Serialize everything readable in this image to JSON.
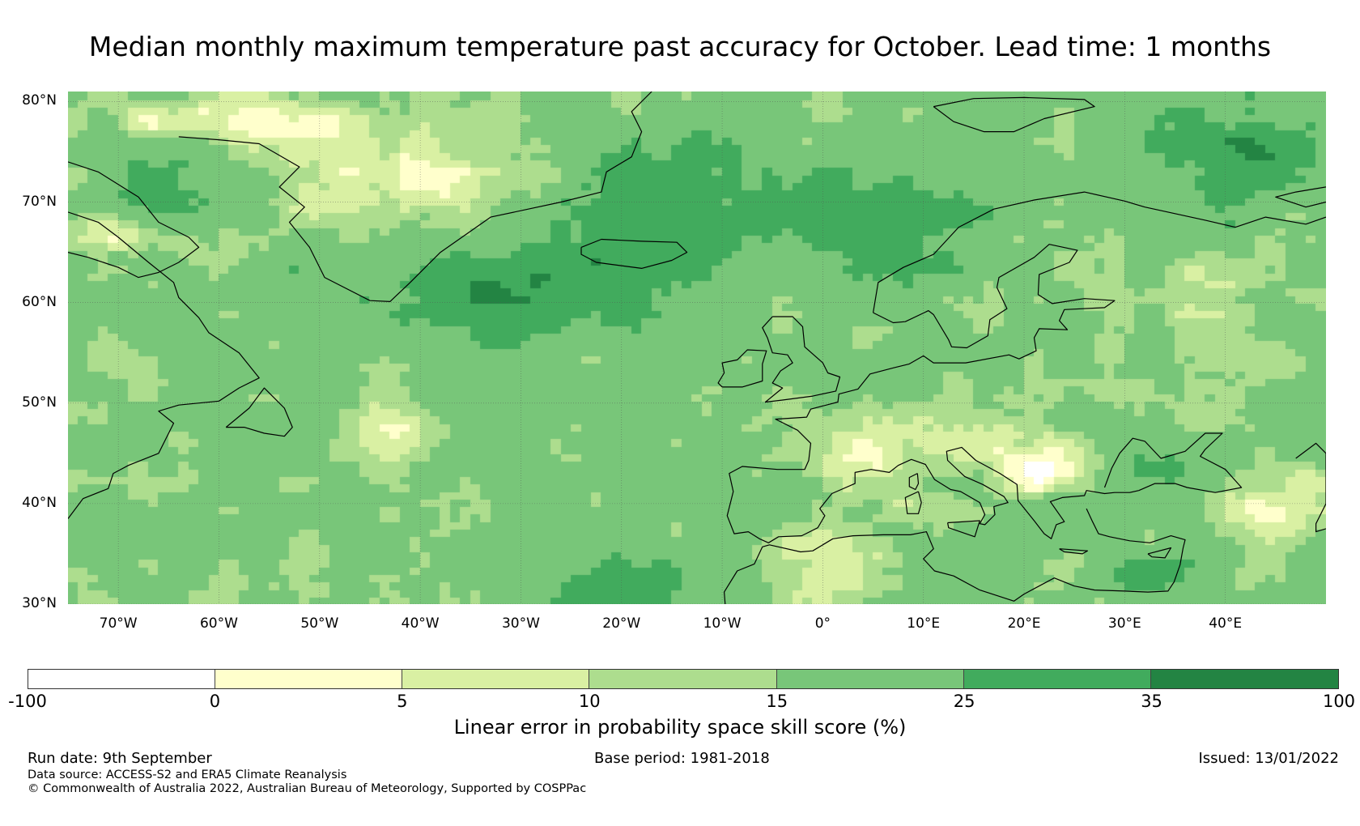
{
  "title": "Median monthly maximum temperature past accuracy for October. Lead time: 1 months",
  "map": {
    "lat_labels": [
      "80°N",
      "70°N",
      "60°N",
      "50°N",
      "40°N",
      "30°N"
    ],
    "lat_values": [
      80,
      70,
      60,
      50,
      40,
      30
    ],
    "lon_labels": [
      "70°W",
      "60°W",
      "50°W",
      "40°W",
      "30°W",
      "20°W",
      "10°W",
      "0°",
      "10°E",
      "20°E",
      "30°E",
      "40°E"
    ],
    "lon_values": [
      -70,
      -60,
      -50,
      -40,
      -30,
      -20,
      -10,
      0,
      10,
      20,
      30,
      40
    ],
    "lon_range": [
      -75,
      50
    ],
    "lat_range": [
      30,
      81
    ],
    "grid": true
  },
  "colorbar": {
    "bounds": [
      "-100",
      "0",
      "5",
      "10",
      "15",
      "25",
      "35",
      "100"
    ],
    "colors": [
      "#ffffff",
      "#ffffcc",
      "#d9f0a3",
      "#addd8e",
      "#78c679",
      "#41ab5d",
      "#238443"
    ],
    "label": "Linear error in probability space skill score (%)"
  },
  "footer": {
    "run_date": "Run date: 9th September",
    "base_period": "Base period: 1981-2018",
    "issued": "Issued: 13/01/2022",
    "data_source": "Data source: ACCESS-S2 and ERA5 Climate Reanalysis",
    "copyright": "© Commonwealth of Australia 2022, Australian Bureau of Meteorology, Supported by COSPPac"
  }
}
